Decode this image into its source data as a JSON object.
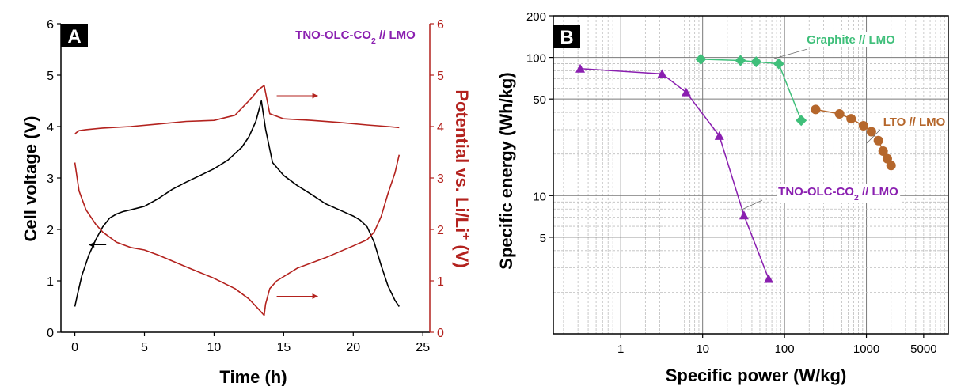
{
  "colors": {
    "black": "#000000",
    "red": "#b3221e",
    "purple": "#8a1fb0",
    "green": "#3fbf7a",
    "orange": "#b5672c",
    "grid": "#8c8c8c"
  },
  "chart_data": [
    {
      "panel": "A",
      "type": "line",
      "title": "TNO-OLC-CO₂ // LMO",
      "xlabel": "Time (h)",
      "ylabel": "Cell voltage (V)",
      "ylabel_right": "Potential vs. Li/Li⁺ (V)",
      "xlim": [
        -1,
        25.5
      ],
      "ylim": [
        0,
        6
      ],
      "ylim_right": [
        0,
        6
      ],
      "xticks": [
        0,
        5,
        10,
        15,
        20,
        25
      ],
      "yticks": [
        0,
        1,
        2,
        3,
        4,
        5,
        6
      ],
      "yticks_right": [
        0,
        1,
        2,
        3,
        4,
        5,
        6
      ],
      "grid": false,
      "series": [
        {
          "axis": "left",
          "color": "#000000",
          "x": [
            0.0,
            0.2,
            0.5,
            1.0,
            1.5,
            2.0,
            2.5,
            3.0,
            3.5,
            4.0,
            5.0,
            6.0,
            7.0,
            8.0,
            9.0,
            10.0,
            11.0,
            12.0,
            12.5,
            13.0,
            13.4,
            13.7,
            14.2,
            15.0,
            16.0,
            17.0,
            18.0,
            19.0,
            20.0,
            20.5,
            21.0,
            21.5,
            22.0,
            22.5,
            23.0,
            23.3
          ],
          "y": [
            0.5,
            0.75,
            1.1,
            1.5,
            1.8,
            2.05,
            2.22,
            2.3,
            2.35,
            2.38,
            2.45,
            2.6,
            2.78,
            2.92,
            3.05,
            3.18,
            3.35,
            3.6,
            3.8,
            4.1,
            4.5,
            3.95,
            3.3,
            3.05,
            2.85,
            2.68,
            2.5,
            2.38,
            2.26,
            2.18,
            2.05,
            1.75,
            1.3,
            0.9,
            0.62,
            0.5
          ]
        },
        {
          "axis": "right",
          "color": "#b3221e",
          "x": [
            0.0,
            0.1,
            0.3,
            0.8,
            2.0,
            4.0,
            6.0,
            8.0,
            10.0,
            11.5,
            12.5,
            13.2,
            13.6,
            14.0,
            15.0,
            17.0,
            19.0,
            21.0,
            22.5,
            23.3
          ],
          "y": [
            3.85,
            3.88,
            3.92,
            3.94,
            3.97,
            4.0,
            4.05,
            4.1,
            4.12,
            4.22,
            4.5,
            4.72,
            4.8,
            4.25,
            4.15,
            4.12,
            4.08,
            4.03,
            4.0,
            3.98
          ]
        },
        {
          "axis": "right",
          "color": "#b3221e",
          "x": [
            0.0,
            0.3,
            0.8,
            1.5,
            2.0,
            3.0,
            4.0,
            5.0,
            6.0,
            8.0,
            10.0,
            11.5,
            12.5,
            13.2,
            13.6,
            13.7,
            14.0,
            14.5,
            16.0,
            18.0,
            20.0,
            21.0,
            21.5,
            22.0,
            22.5,
            23.0,
            23.3
          ],
          "y": [
            3.3,
            2.75,
            2.38,
            2.1,
            1.95,
            1.75,
            1.65,
            1.6,
            1.5,
            1.27,
            1.05,
            0.85,
            0.65,
            0.45,
            0.33,
            0.55,
            0.85,
            1.0,
            1.25,
            1.45,
            1.68,
            1.8,
            1.95,
            2.25,
            2.7,
            3.1,
            3.45
          ]
        }
      ],
      "annotations": [
        {
          "text": "",
          "direction": "left",
          "at": [
            1.0,
            1.7
          ]
        },
        {
          "text": "",
          "direction": "right",
          "at": [
            14.5,
            4.6
          ]
        },
        {
          "text": "",
          "direction": "right",
          "at": [
            14.5,
            0.7
          ]
        }
      ]
    },
    {
      "panel": "B",
      "type": "scatter",
      "xlabel": "Specific power (W/kg)",
      "ylabel": "Specific energy (Wh/kg)",
      "xscale": "log",
      "yscale": "log",
      "xlim": [
        0.15,
        10000
      ],
      "ylim": [
        1,
        200
      ],
      "xticks": [
        1,
        10,
        100,
        1000,
        5000
      ],
      "yticks": [
        5,
        10,
        50,
        100,
        200
      ],
      "grid": true,
      "series": [
        {
          "name": "TNO-OLC-CO₂ // LMO",
          "marker": "triangle",
          "color": "#8a1fb0",
          "x": [
            0.32,
            3.2,
            6.3,
            16,
            32,
            64
          ],
          "y": [
            83,
            76,
            56,
            27,
            7.2,
            2.5
          ]
        },
        {
          "name": "Graphite // LMO",
          "marker": "diamond",
          "color": "#3fbf7a",
          "x": [
            9.5,
            29,
            45,
            85,
            160
          ],
          "y": [
            97,
            95,
            93,
            90,
            35
          ]
        },
        {
          "name": "LTO // LMO",
          "marker": "circle",
          "color": "#b5672c",
          "x": [
            240,
            470,
            650,
            920,
            1150,
            1400,
            1600,
            1800,
            2000
          ],
          "y": [
            42,
            39,
            36,
            32,
            29,
            25,
            21,
            18.5,
            16.5
          ]
        }
      ]
    }
  ]
}
